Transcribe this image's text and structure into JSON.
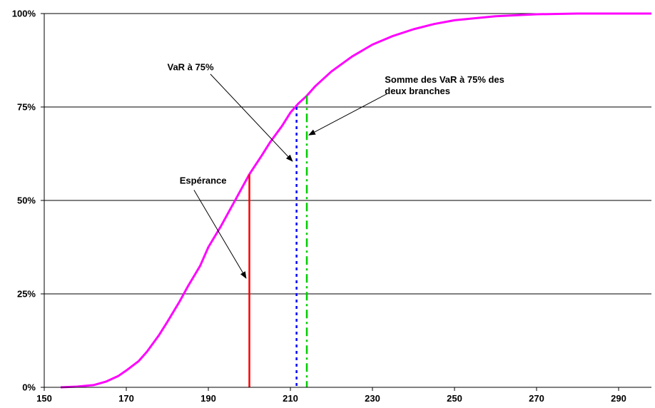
{
  "chart_data": {
    "type": "line",
    "title": "",
    "xlabel": "",
    "ylabel": "",
    "xlim": [
      150,
      298
    ],
    "ylim": [
      0,
      100
    ],
    "x_ticks": [
      150,
      170,
      190,
      210,
      230,
      250,
      270,
      290
    ],
    "y_ticks": [
      0,
      25,
      50,
      75,
      100
    ],
    "y_tick_labels": [
      "0%",
      "25%",
      "50%",
      "75%",
      "100%"
    ],
    "grid": "horizontal",
    "series": [
      {
        "color": "#ff00ff",
        "points": [
          [
            154,
            0
          ],
          [
            158,
            0.2
          ],
          [
            162,
            0.6
          ],
          [
            165,
            1.5
          ],
          [
            168,
            3.0
          ],
          [
            170,
            4.5
          ],
          [
            173,
            7.0
          ],
          [
            175,
            9.5
          ],
          [
            178,
            14.0
          ],
          [
            180,
            17.5
          ],
          [
            183,
            23.0
          ],
          [
            185,
            27.0
          ],
          [
            188,
            32.5
          ],
          [
            190,
            37.5
          ],
          [
            193,
            43.0
          ],
          [
            195,
            47.0
          ],
          [
            197,
            51.0
          ],
          [
            200,
            57.0
          ],
          [
            203,
            62.0
          ],
          [
            205,
            65.5
          ],
          [
            208,
            70.0
          ],
          [
            210,
            73.5
          ],
          [
            212,
            76.0
          ],
          [
            214,
            78.0
          ],
          [
            216,
            80.5
          ],
          [
            220,
            84.5
          ],
          [
            225,
            88.5
          ],
          [
            230,
            91.7
          ],
          [
            235,
            94.0
          ],
          [
            240,
            95.8
          ],
          [
            245,
            97.2
          ],
          [
            250,
            98.2
          ],
          [
            260,
            99.3
          ],
          [
            270,
            99.8
          ],
          [
            280,
            100
          ],
          [
            290,
            100
          ],
          [
            298,
            100
          ]
        ]
      }
    ],
    "vertical_lines": [
      {
        "name": "Espérance",
        "x": 200,
        "y": 57,
        "color": "#ff0000",
        "style": "solid"
      },
      {
        "name": "VaR à 75%",
        "x": 211.5,
        "y": 75,
        "color": "#0000ff",
        "style": "dotted"
      },
      {
        "name": "Somme des VaR à 75% des deux branches",
        "x": 214,
        "y": 78,
        "color": "#00cc00",
        "style": "dashdot"
      }
    ],
    "annotations": [
      {
        "key": "esperance",
        "lines": [
          "Espérance"
        ],
        "text_x": 183,
        "text_y": 54.5,
        "arrow_from": [
          186.5,
          52.8
        ],
        "arrow_to": [
          199.2,
          29.2
        ]
      },
      {
        "key": "var",
        "lines": [
          "VaR à 75%"
        ],
        "text_x": 180,
        "text_y": 84.8,
        "arrow_from": [
          190.5,
          83.8
        ],
        "arrow_to": [
          210.5,
          60.5
        ]
      },
      {
        "key": "somme",
        "lines": [
          "Somme des VaR à 75% des",
          "deux branches"
        ],
        "text_x": 233,
        "text_y": 81.5,
        "arrow_from": [
          233.5,
          78.5
        ],
        "arrow_to": [
          214.5,
          67.5
        ]
      }
    ]
  }
}
